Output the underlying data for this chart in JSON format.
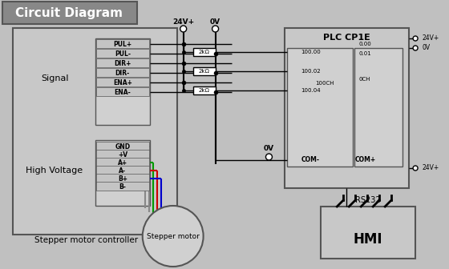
{
  "bg_color": "#c0c0c0",
  "title": "Circuit Diagram",
  "title_bg": "#888888",
  "box_fill": "#c8c8c8",
  "box_edge": "#555555",
  "inner_fill": "#d0d0d0",
  "row_fill": "#c4c4c4",
  "signal_labels": [
    "PUL+",
    "PUL-",
    "DIR+",
    "DIR-",
    "ENA+",
    "ENA-"
  ],
  "hv_labels": [
    "GND",
    "+V",
    "A+",
    "A-",
    "B+",
    "B-"
  ],
  "resistor_values": [
    "2kΩ",
    "2kΩ",
    "2kΩ"
  ],
  "plc_title": "PLC CP1E",
  "plc_in_labels": [
    "100.00",
    "100.02",
    "100.04"
  ],
  "plc_ch_label": "100CH",
  "plc_com_minus": "COM-",
  "plc_out_labels": [
    "0.00",
    "0.01"
  ],
  "plc_out_ch": "0CH",
  "plc_com_plus": "COM+",
  "hmi_label": "HMI",
  "motor_label": "Stepper motor",
  "rs232_label": "RS232",
  "ctrl_signal": "Signal",
  "ctrl_main": "Stepper motor controller",
  "ctrl_hv": "High Voltage",
  "wire_colors": [
    "#888888",
    "#888888",
    "#009900",
    "#cc0000",
    "#0000cc"
  ],
  "pwr_24v": "24V+",
  "pwr_0v": "0V",
  "lc": "#222222"
}
